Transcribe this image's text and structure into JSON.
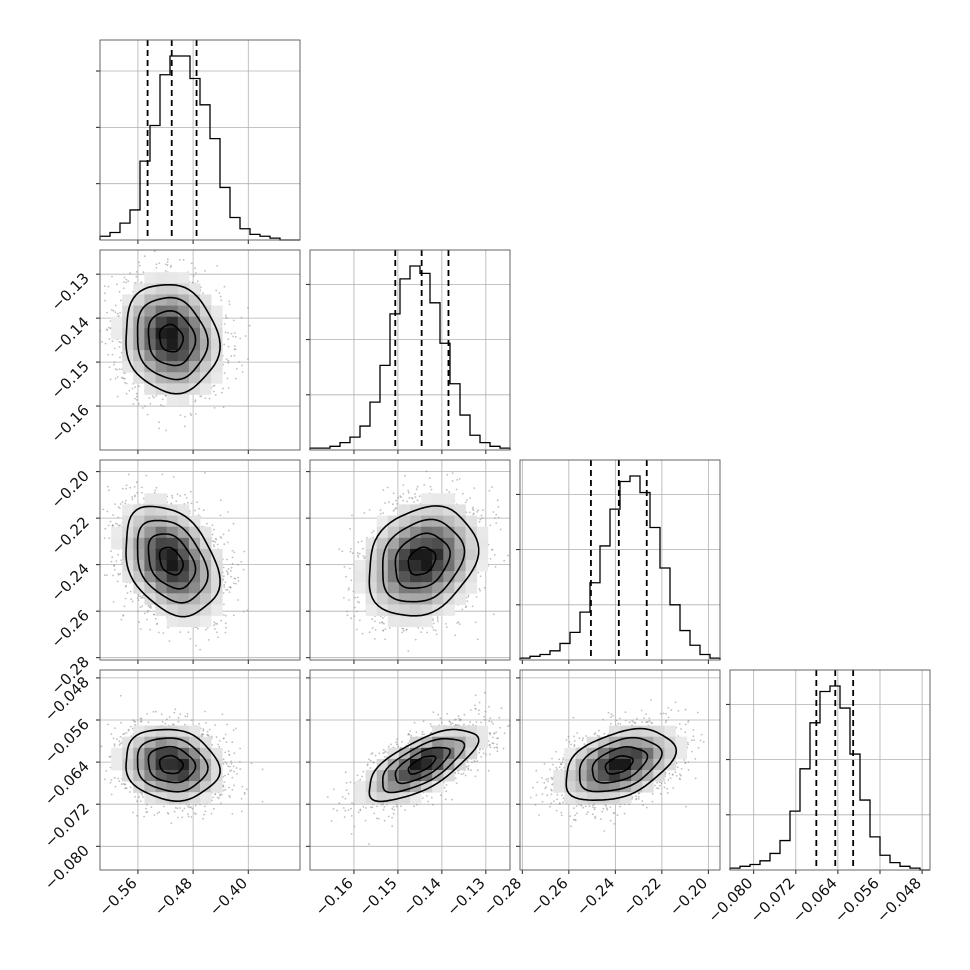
{
  "chart_data": {
    "type": "corner",
    "n_params": 4,
    "grid": true,
    "params": [
      {
        "range": [
          -0.615,
          -0.325
        ],
        "ticks": [
          -0.56,
          -0.48,
          -0.4
        ],
        "tick_labels": [
          "−0.56",
          "−0.48",
          "−0.40"
        ],
        "mean": -0.512,
        "sd": 0.034,
        "quantiles": [
          -0.546,
          -0.511,
          -0.475
        ]
      },
      {
        "range": [
          -0.17,
          -0.1245
        ],
        "ticks": [
          -0.16,
          -0.15,
          -0.14,
          -0.13
        ],
        "tick_labels": [
          "−0.16",
          "−0.15",
          "−0.14",
          "−0.13"
        ],
        "mean": -0.1446,
        "sd": 0.0062,
        "quantiles": [
          -0.1506,
          -0.1446,
          -0.1385
        ]
      },
      {
        "range": [
          -0.281,
          -0.195
        ],
        "ticks": [
          -0.28,
          -0.26,
          -0.24,
          -0.22,
          -0.2
        ],
        "tick_labels": [
          "−0.28",
          "−0.26",
          "−0.24",
          "−0.22",
          "−0.20"
        ],
        "mean": -0.2385,
        "sd": 0.0118,
        "quantiles": [
          -0.2505,
          -0.2385,
          -0.2265
        ]
      },
      {
        "range": [
          -0.0845,
          -0.0465
        ],
        "ticks": [
          -0.08,
          -0.072,
          -0.064,
          -0.056,
          -0.048
        ],
        "tick_labels": [
          "−0.080",
          "−0.072",
          "−0.064",
          "−0.056",
          "−0.048"
        ],
        "mean": -0.0645,
        "sd": 0.0034,
        "quantiles": [
          -0.0681,
          -0.0645,
          -0.0611
        ]
      }
    ],
    "histograms": [
      [
        2,
        4,
        9,
        16,
        42,
        61,
        88,
        98,
        98,
        86,
        72,
        54,
        28,
        12,
        6,
        3,
        2,
        1,
        0,
        0
      ],
      [
        1,
        1,
        2,
        4,
        7,
        13,
        26,
        46,
        74,
        93,
        100,
        96,
        80,
        58,
        36,
        19,
        8,
        4,
        2,
        1
      ],
      [
        1,
        2,
        3,
        5,
        9,
        15,
        26,
        42,
        62,
        82,
        97,
        100,
        91,
        72,
        50,
        30,
        16,
        8,
        3,
        1
      ],
      [
        1,
        2,
        3,
        5,
        9,
        16,
        32,
        55,
        80,
        97,
        100,
        88,
        63,
        38,
        18,
        8,
        4,
        2,
        1,
        0
      ]
    ],
    "correlations": [
      {
        "pair": [
          0,
          1
        ],
        "rho": -0.1
      },
      {
        "pair": [
          0,
          2
        ],
        "rho": -0.32
      },
      {
        "pair": [
          1,
          2
        ],
        "rho": 0.22
      },
      {
        "pair": [
          0,
          3
        ],
        "rho": -0.12
      },
      {
        "pair": [
          1,
          3
        ],
        "rho": 0.68
      },
      {
        "pair": [
          2,
          3
        ],
        "rho": 0.4
      }
    ],
    "contour_levels_sigma": [
      0.5,
      1.0,
      1.5,
      2.0
    ],
    "quantile_levels": [
      0.16,
      0.5,
      0.84
    ],
    "colors": {
      "line": "#000000",
      "density_max": "#1a1a1a",
      "scatter": "#8a8a8a",
      "grid": "#b0b0b0"
    }
  }
}
